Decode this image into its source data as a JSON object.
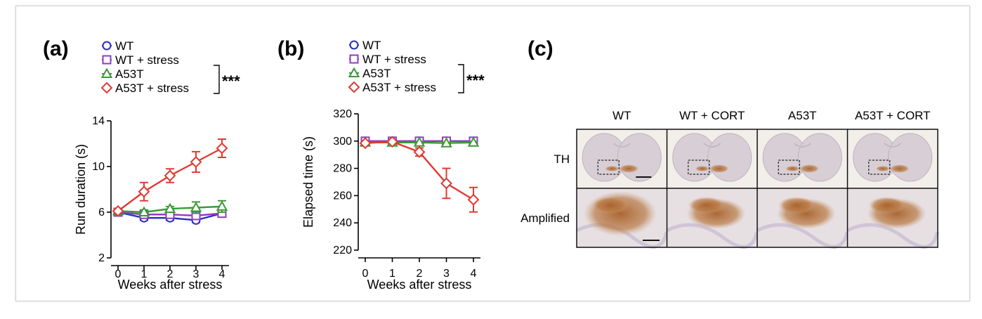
{
  "colors": {
    "WT": "#2c2fbf",
    "WT + stress": "#8e3fbf",
    "A53T": "#3a9a36",
    "A53T + stress": "#e03a33"
  },
  "panel_c": {
    "letter": "(c)",
    "columns": [
      "WT",
      "WT + CORT",
      "A53T",
      "A53T + CORT"
    ],
    "rows": [
      "TH",
      "Amplified"
    ]
  },
  "chart_data": [
    {
      "type": "line",
      "panel": "(a)",
      "xlabel": "Weeks after stress",
      "ylabel": "Run duration (s)",
      "x": [
        0,
        1,
        2,
        3,
        4
      ],
      "ylim": [
        2,
        14
      ],
      "yticks": [
        2,
        6,
        10,
        14
      ],
      "significance": "***",
      "series": [
        {
          "name": "WT",
          "marker": "circle",
          "color": "#2c2fbf",
          "values": [
            6.0,
            5.5,
            5.5,
            5.3,
            5.9
          ],
          "error": [
            0.2,
            0.2,
            0.2,
            0.2,
            0.2
          ]
        },
        {
          "name": "WT + stress",
          "marker": "square",
          "color": "#8e3fbf",
          "values": [
            6.0,
            5.8,
            5.8,
            5.7,
            5.9
          ],
          "error": [
            0.2,
            0.2,
            0.2,
            0.2,
            0.2
          ]
        },
        {
          "name": "A53T",
          "marker": "triangle",
          "color": "#3a9a36",
          "values": [
            6.1,
            6.0,
            6.3,
            6.4,
            6.5
          ],
          "error": [
            0.2,
            0.2,
            0.2,
            0.5,
            0.5
          ]
        },
        {
          "name": "A53T + stress",
          "marker": "diamond",
          "color": "#e03a33",
          "values": [
            6.1,
            7.8,
            9.2,
            10.4,
            11.6
          ],
          "error": [
            0.2,
            0.8,
            0.6,
            0.9,
            0.8
          ]
        }
      ]
    },
    {
      "type": "line",
      "panel": "(b)",
      "xlabel": "Weeks after stress",
      "ylabel": "Elapsed time (s)",
      "x": [
        0,
        1,
        2,
        3,
        4
      ],
      "ylim": [
        220,
        320
      ],
      "yticks": [
        220,
        240,
        260,
        280,
        300,
        320
      ],
      "significance": "***",
      "series": [
        {
          "name": "WT",
          "marker": "circle",
          "color": "#2c2fbf",
          "values": [
            300,
            300,
            300,
            300,
            300
          ],
          "error": [
            0.5,
            0.5,
            0.5,
            0.5,
            0.5
          ]
        },
        {
          "name": "WT + stress",
          "marker": "square",
          "color": "#8e3fbf",
          "values": [
            300,
            300,
            300,
            300,
            300
          ],
          "error": [
            0.5,
            0.5,
            0.5,
            0.5,
            0.5
          ]
        },
        {
          "name": "A53T",
          "marker": "triangle",
          "color": "#3a9a36",
          "values": [
            299,
            299,
            299,
            298.5,
            299
          ],
          "error": [
            0.5,
            0.5,
            0.5,
            0.5,
            0.5
          ]
        },
        {
          "name": "A53T + stress",
          "marker": "diamond",
          "color": "#e03a33",
          "values": [
            298.5,
            299.5,
            292,
            269,
            257
          ],
          "error": [
            0.8,
            0.5,
            3,
            11,
            9
          ]
        }
      ]
    }
  ]
}
